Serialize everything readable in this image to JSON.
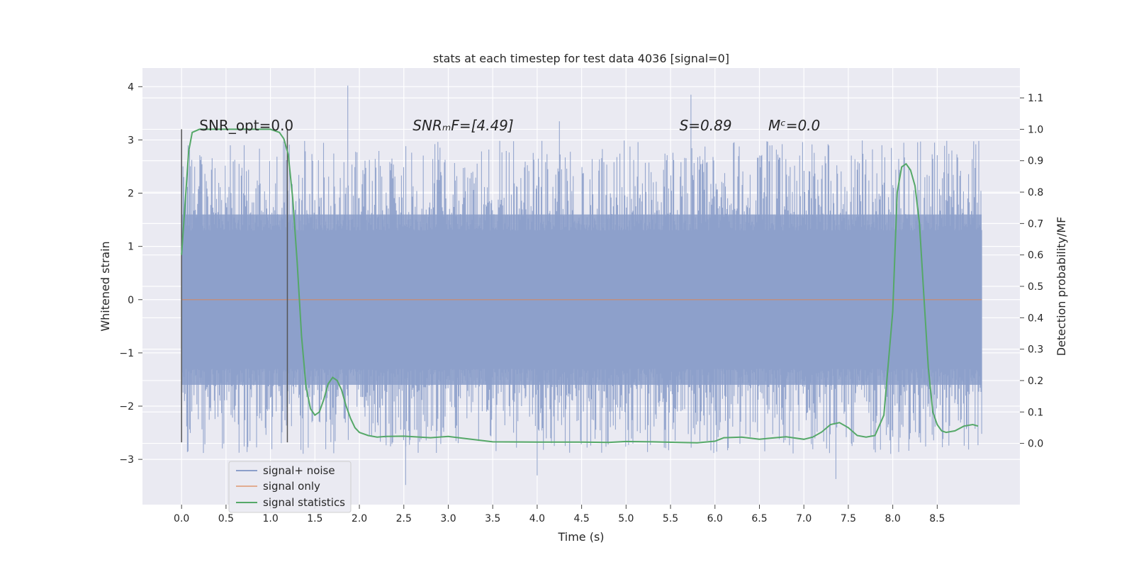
{
  "chart_data": {
    "type": "line",
    "title": "stats at each timestep for test data 4036 [signal=0]",
    "xlabel": "Time (s)",
    "ylabel_left": "Whitened strain",
    "ylabel_right": "Detection probability/MF",
    "xlim": [
      -0.44,
      9.43
    ],
    "ylim_left": [
      -3.85,
      4.35
    ],
    "ylim_right": [
      -0.195,
      1.195
    ],
    "grid": true,
    "x_ticks": [
      "0.0",
      "0.5",
      "1.0",
      "1.5",
      "2.0",
      "2.5",
      "3.0",
      "3.5",
      "4.0",
      "4.5",
      "5.0",
      "5.5",
      "6.0",
      "6.5",
      "7.0",
      "7.5",
      "8.0",
      "8.5"
    ],
    "y_left_ticks": [
      "−3",
      "−2",
      "−1",
      "0",
      "1",
      "2",
      "3",
      "4"
    ],
    "y_right_ticks": [
      "0.0",
      "0.1",
      "0.2",
      "0.3",
      "0.4",
      "0.5",
      "0.6",
      "0.7",
      "0.8",
      "0.9",
      "1.0",
      "1.1"
    ],
    "legend_position": "lower-left",
    "series": [
      {
        "name": "signal+ noise",
        "color": "#8c9fca",
        "description_values": {
          "x_range": [
            0.0,
            9.0
          ],
          "typical_band": [
            -1.6,
            1.6
          ],
          "max_peak": 4.02,
          "min_peak": -3.48
        }
      },
      {
        "name": "signal only",
        "color": "#dd8452",
        "x": [
          0.0,
          9.0
        ],
        "y": [
          0.0,
          0.0
        ]
      },
      {
        "name": "signal statistics",
        "color": "#55a868",
        "x": [
          0.0,
          0.08,
          0.12,
          0.2,
          0.3,
          0.5,
          0.8,
          1.0,
          1.1,
          1.15,
          1.2,
          1.25,
          1.3,
          1.35,
          1.4,
          1.45,
          1.5,
          1.55,
          1.6,
          1.65,
          1.7,
          1.75,
          1.8,
          1.85,
          1.9,
          1.95,
          2.0,
          2.1,
          2.2,
          2.3,
          2.5,
          2.8,
          3.0,
          3.2,
          3.5,
          4.0,
          4.5,
          4.8,
          5.0,
          5.3,
          5.6,
          5.8,
          6.0,
          6.1,
          6.3,
          6.5,
          6.6,
          6.8,
          7.0,
          7.1,
          7.2,
          7.3,
          7.4,
          7.5,
          7.6,
          7.7,
          7.8,
          7.9,
          8.0,
          8.05,
          8.1,
          8.15,
          8.2,
          8.25,
          8.3,
          8.35,
          8.4,
          8.45,
          8.5,
          8.55,
          8.6,
          8.7,
          8.8,
          8.9,
          8.96
        ],
        "y": [
          0.6,
          0.93,
          0.99,
          1.0,
          1.0,
          1.0,
          1.0,
          1.0,
          0.99,
          0.97,
          0.92,
          0.78,
          0.58,
          0.34,
          0.18,
          0.11,
          0.09,
          0.1,
          0.14,
          0.19,
          0.21,
          0.2,
          0.17,
          0.12,
          0.08,
          0.05,
          0.035,
          0.025,
          0.02,
          0.022,
          0.023,
          0.018,
          0.022,
          0.015,
          0.005,
          0.004,
          0.004,
          0.003,
          0.006,
          0.005,
          0.003,
          0.002,
          0.007,
          0.018,
          0.02,
          0.013,
          0.016,
          0.021,
          0.013,
          0.02,
          0.036,
          0.06,
          0.066,
          0.05,
          0.025,
          0.02,
          0.025,
          0.09,
          0.42,
          0.8,
          0.88,
          0.89,
          0.87,
          0.82,
          0.7,
          0.47,
          0.24,
          0.1,
          0.06,
          0.04,
          0.035,
          0.04,
          0.055,
          0.06,
          0.055
        ]
      }
    ],
    "vlines": [
      {
        "x": 0.0,
        "y_range_left": [
          -2.68,
          3.2
        ],
        "color": "#555555"
      },
      {
        "x": 1.19,
        "y_range_left": [
          -2.68,
          3.2
        ],
        "color": "#555555"
      }
    ],
    "annotations": [
      {
        "label": "SNR_opt=0.0",
        "x": 0.2
      },
      {
        "label": "SNRₘF=[4.49]",
        "x": 2.6
      },
      {
        "label": "S=0.89",
        "x": 5.6
      },
      {
        "label": "Mᶜ=0.0",
        "x": 6.6
      }
    ],
    "legend": [
      "signal+ noise",
      "signal only",
      "signal statistics"
    ]
  }
}
